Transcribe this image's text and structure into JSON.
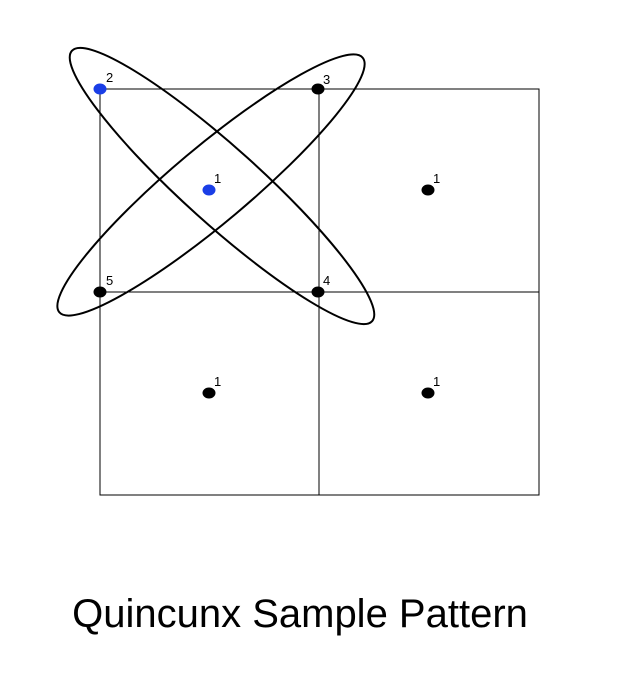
{
  "caption": "Quincunx Sample Pattern",
  "colors": {
    "shared_sample": "#000000",
    "pixel_sample": "#1a3ee6",
    "line": "#000000"
  },
  "samples": [
    {
      "name": "sample-center-1",
      "label": "1",
      "color": "#1a3ee6"
    },
    {
      "name": "sample-corner-2",
      "label": "2",
      "color": "#1a3ee6"
    },
    {
      "name": "sample-corner-3",
      "label": "3",
      "color": "#000000"
    },
    {
      "name": "sample-corner-4",
      "label": "4",
      "color": "#000000"
    },
    {
      "name": "sample-corner-5",
      "label": "5",
      "color": "#000000"
    },
    {
      "name": "sample-center-top-right",
      "label": "1",
      "color": "#000000"
    },
    {
      "name": "sample-center-bottom-left",
      "label": "1",
      "color": "#000000"
    },
    {
      "name": "sample-center-bottom-right",
      "label": "1",
      "color": "#000000"
    }
  ]
}
